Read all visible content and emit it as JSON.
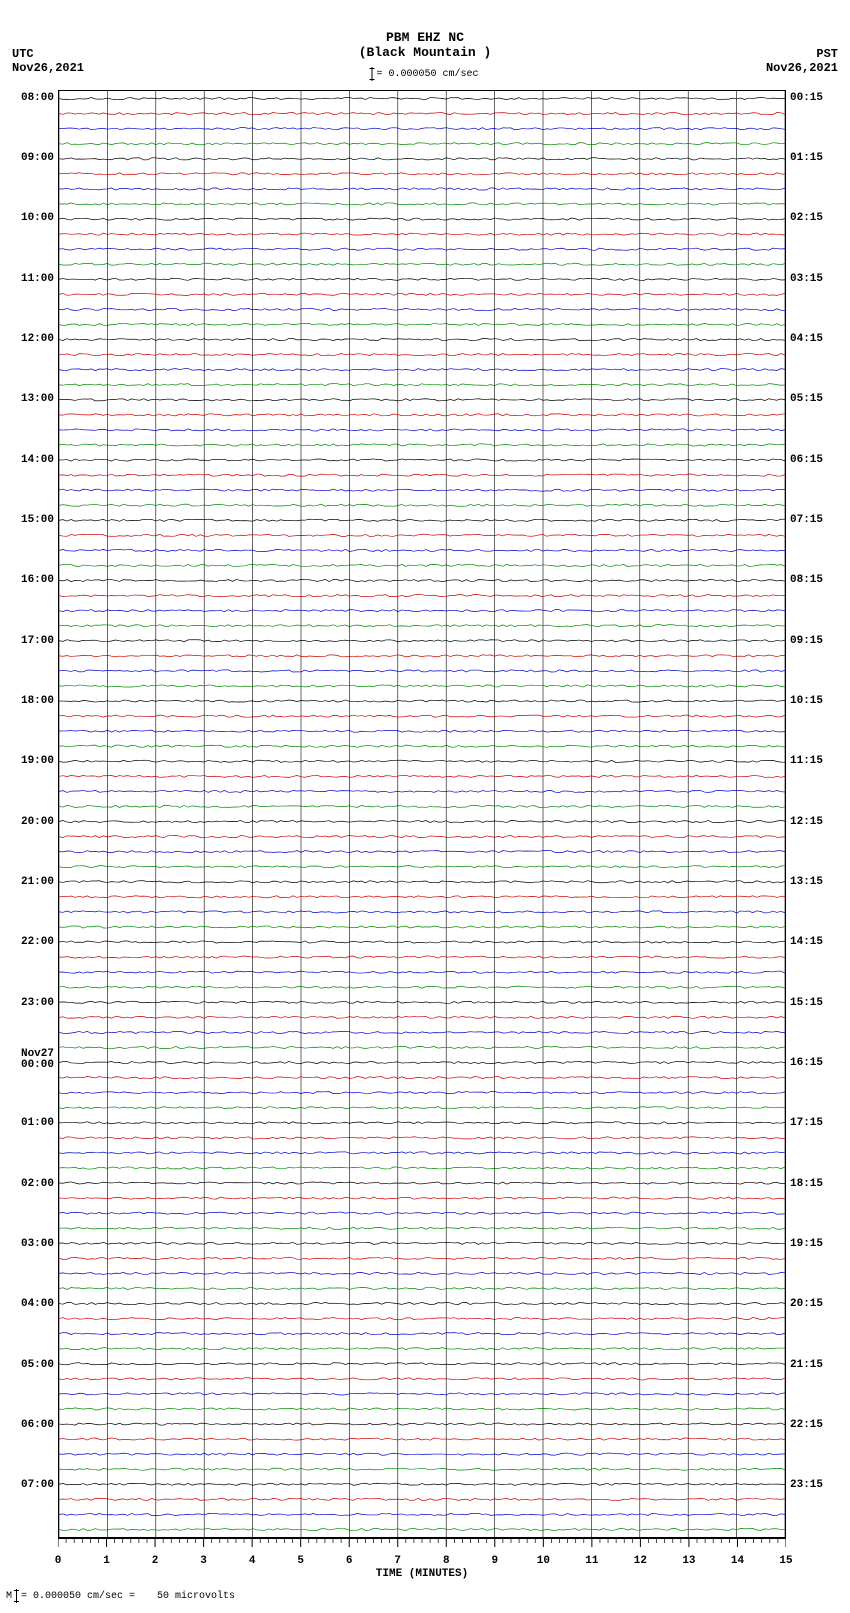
{
  "type": "helicorder",
  "header": {
    "title_line1": "PBM EHZ NC",
    "title_line2": "(Black Mountain )",
    "scale_text": "= 0.000050 cm/sec"
  },
  "tz_left": {
    "label": "UTC",
    "date": "Nov26,2021"
  },
  "tz_right": {
    "label": "PST",
    "date": "Nov26,2021"
  },
  "plot": {
    "background_color": "#ffffff",
    "border_color": "#000000",
    "total_traces": 96,
    "trace_colors": [
      "#000000",
      "#cc0000",
      "#0000cc",
      "#008800"
    ],
    "grid_color": "#000000",
    "grid_minor_per_major": 4,
    "x_major_count": 15,
    "x_minutes": 15
  },
  "left_labels": [
    {
      "i": 0,
      "t": "08:00"
    },
    {
      "i": 4,
      "t": "09:00"
    },
    {
      "i": 8,
      "t": "10:00"
    },
    {
      "i": 12,
      "t": "11:00"
    },
    {
      "i": 16,
      "t": "12:00"
    },
    {
      "i": 20,
      "t": "13:00"
    },
    {
      "i": 24,
      "t": "14:00"
    },
    {
      "i": 28,
      "t": "15:00"
    },
    {
      "i": 32,
      "t": "16:00"
    },
    {
      "i": 36,
      "t": "17:00"
    },
    {
      "i": 40,
      "t": "18:00"
    },
    {
      "i": 44,
      "t": "19:00"
    },
    {
      "i": 48,
      "t": "20:00"
    },
    {
      "i": 52,
      "t": "21:00"
    },
    {
      "i": 56,
      "t": "22:00"
    },
    {
      "i": 60,
      "t": "23:00"
    },
    {
      "i": 64,
      "t": "Nov27\n00:00"
    },
    {
      "i": 68,
      "t": "01:00"
    },
    {
      "i": 72,
      "t": "02:00"
    },
    {
      "i": 76,
      "t": "03:00"
    },
    {
      "i": 80,
      "t": "04:00"
    },
    {
      "i": 84,
      "t": "05:00"
    },
    {
      "i": 88,
      "t": "06:00"
    },
    {
      "i": 92,
      "t": "07:00"
    }
  ],
  "right_labels": [
    {
      "i": 0,
      "t": "00:15"
    },
    {
      "i": 4,
      "t": "01:15"
    },
    {
      "i": 8,
      "t": "02:15"
    },
    {
      "i": 12,
      "t": "03:15"
    },
    {
      "i": 16,
      "t": "04:15"
    },
    {
      "i": 20,
      "t": "05:15"
    },
    {
      "i": 24,
      "t": "06:15"
    },
    {
      "i": 28,
      "t": "07:15"
    },
    {
      "i": 32,
      "t": "08:15"
    },
    {
      "i": 36,
      "t": "09:15"
    },
    {
      "i": 40,
      "t": "10:15"
    },
    {
      "i": 44,
      "t": "11:15"
    },
    {
      "i": 48,
      "t": "12:15"
    },
    {
      "i": 52,
      "t": "13:15"
    },
    {
      "i": 56,
      "t": "14:15"
    },
    {
      "i": 60,
      "t": "15:15"
    },
    {
      "i": 64,
      "t": "16:15"
    },
    {
      "i": 68,
      "t": "17:15"
    },
    {
      "i": 72,
      "t": "18:15"
    },
    {
      "i": 76,
      "t": "19:15"
    },
    {
      "i": 80,
      "t": "20:15"
    },
    {
      "i": 84,
      "t": "21:15"
    },
    {
      "i": 88,
      "t": "22:15"
    },
    {
      "i": 92,
      "t": "23:15"
    }
  ],
  "xaxis": {
    "ticks": [
      "0",
      "1",
      "2",
      "3",
      "4",
      "5",
      "6",
      "7",
      "8",
      "9",
      "10",
      "11",
      "12",
      "13",
      "14",
      "15"
    ],
    "minor_per_major": 6,
    "title": "TIME (MINUTES)",
    "label_fontsize": 11
  },
  "footer": {
    "text_left": "= 0.000050 cm/sec =",
    "text_right": "50 microvolts",
    "prefix": "M"
  }
}
